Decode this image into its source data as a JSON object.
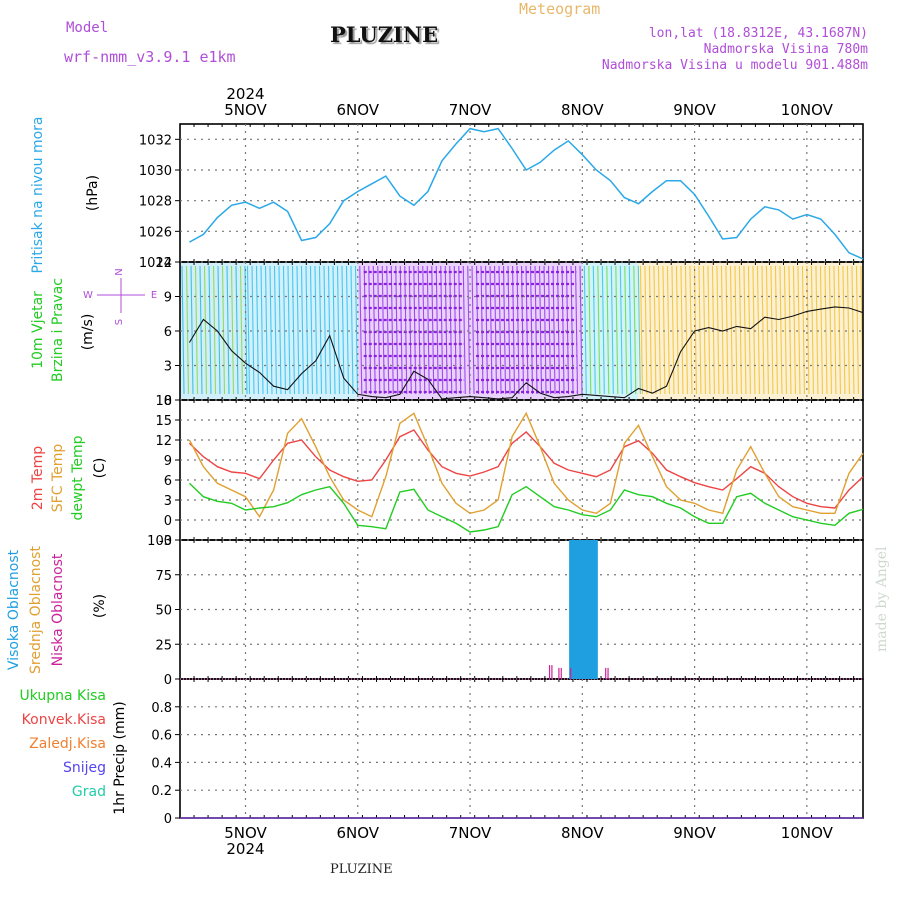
{
  "header": {
    "model_label": "Model",
    "model_name": "wrf-nmm_v3.9.1  e1km",
    "title": "PLUZINE",
    "product": "Meteogram",
    "coords": "lon,lat (18.8312E, 43.1687N)",
    "elevation": "Nadmorska Visina 780m",
    "model_elevation": "Nadmorska Visina u modelu 901.488m"
  },
  "footer": {
    "station": "PLUZINE"
  },
  "watermark": "made by Angel",
  "time_axis": {
    "year": "2024",
    "days": [
      "5NOV",
      "6NOV",
      "7NOV",
      "8NOV",
      "9NOV",
      "10NOV"
    ]
  },
  "colors": {
    "pressure": "#2aa8e8",
    "temp2m": "#ee4444",
    "sfc_temp": "#e0a030",
    "dewpoint": "#22cc22",
    "high_cloud": "#1f9fe0",
    "low_cloud": "#cc2299"
  },
  "chart_data": [
    {
      "type": "line",
      "panel": "pressure",
      "ylabel_lines": [
        "Pritisak na nivou mora",
        "(hPa)"
      ],
      "ylim": [
        1024,
        1033
      ],
      "yticks": [
        1024,
        1026,
        1028,
        1030,
        1032
      ],
      "x_hours": [
        0,
        3,
        6,
        9,
        12,
        15,
        18,
        21,
        24,
        27,
        30,
        33,
        36,
        39,
        42,
        45,
        48,
        51,
        54,
        57,
        60,
        63,
        66,
        69,
        72,
        75,
        78,
        81,
        84,
        87,
        90,
        93,
        96,
        99,
        102,
        105,
        108,
        111,
        114,
        117,
        120,
        123,
        126,
        129,
        132,
        135,
        138,
        141,
        144
      ],
      "series": [
        {
          "values": [
            1025.3,
            1025.8,
            1026.9,
            1027.7,
            1027.9,
            1027.5,
            1027.9,
            1027.3,
            1025.4,
            1025.6,
            1026.5,
            1028.0,
            1028.6,
            1029.1,
            1029.6,
            1028.3,
            1027.7,
            1028.6,
            1030.6,
            1031.7,
            1032.7,
            1032.5,
            1032.7,
            1031.4,
            1030.0,
            1030.5,
            1031.3,
            1031.9,
            1031.0,
            1030.0,
            1029.3,
            1028.2,
            1027.8,
            1028.6,
            1029.3,
            1029.3,
            1028.4,
            1027.0,
            1025.5,
            1025.6,
            1026.8,
            1027.6,
            1027.4,
            1026.8,
            1027.1,
            1026.8,
            1025.8,
            1024.6,
            1024.2
          ]
        }
      ]
    },
    {
      "type": "line",
      "panel": "wind",
      "ylabel_lines": [
        "10m Vjetar",
        "Brzina i Pravac",
        "(m/s)"
      ],
      "compass": [
        "N",
        "E",
        "S",
        "W"
      ],
      "ylim": [
        0,
        12
      ],
      "yticks": [
        0,
        3,
        6,
        9,
        12
      ],
      "x_hours": [
        0,
        3,
        6,
        9,
        12,
        15,
        18,
        21,
        24,
        27,
        30,
        33,
        36,
        39,
        42,
        45,
        48,
        51,
        54,
        57,
        60,
        63,
        66,
        69,
        72,
        75,
        78,
        81,
        84,
        87,
        90,
        93,
        96,
        99,
        102,
        105,
        108,
        111,
        114,
        117,
        120,
        123,
        126,
        129,
        132,
        135,
        138,
        141,
        144
      ],
      "series": [
        {
          "name": "wind_speed",
          "values": [
            5.0,
            7.0,
            6.0,
            4.3,
            3.2,
            2.4,
            1.2,
            0.9,
            2.3,
            3.4,
            5.6,
            1.9,
            0.5,
            0.3,
            0.2,
            0.5,
            2.5,
            1.8,
            0.1,
            0.2,
            0.3,
            0.2,
            0.1,
            0.2,
            1.5,
            0.6,
            0.2,
            0.3,
            0.5,
            0.4,
            0.3,
            0.2,
            1.0,
            0.6,
            1.2,
            4.2,
            6.0,
            6.3,
            6.0,
            6.4,
            6.2,
            7.2,
            7.0,
            7.3,
            7.7,
            7.9,
            8.1,
            8.0,
            7.6
          ]
        }
      ]
    },
    {
      "type": "line",
      "panel": "temperature",
      "ylabel_lines": [
        "2m Temp",
        "SFC Temp",
        "dewpt Temp",
        "(C)"
      ],
      "ylim": [
        -3,
        18
      ],
      "yticks": [
        -3,
        0,
        3,
        6,
        9,
        12,
        15,
        18
      ],
      "x_hours": [
        0,
        3,
        6,
        9,
        12,
        15,
        18,
        21,
        24,
        27,
        30,
        33,
        36,
        39,
        42,
        45,
        48,
        51,
        54,
        57,
        60,
        63,
        66,
        69,
        72,
        75,
        78,
        81,
        84,
        87,
        90,
        93,
        96,
        99,
        102,
        105,
        108,
        111,
        114,
        117,
        120,
        123,
        126,
        129,
        132,
        135,
        138,
        141,
        144
      ],
      "series": [
        {
          "name": "2m Temp",
          "values": [
            11.5,
            9.5,
            8.0,
            7.2,
            7.0,
            6.2,
            9.0,
            11.5,
            12.0,
            9.5,
            7.5,
            6.5,
            5.8,
            6.0,
            9.0,
            12.5,
            13.5,
            10.5,
            8.0,
            7.0,
            6.6,
            7.2,
            8.0,
            11.5,
            13.2,
            11.0,
            8.5,
            7.5,
            7.0,
            6.5,
            7.5,
            11.0,
            11.9,
            10.0,
            7.5,
            6.5,
            5.6,
            5.0,
            4.5,
            6.2,
            8.0,
            7.0,
            5.0,
            3.5,
            2.5,
            2.0,
            1.8,
            4.5,
            6.5
          ]
        },
        {
          "name": "SFC Temp",
          "values": [
            12.0,
            8.0,
            5.5,
            4.5,
            3.5,
            0.5,
            4.5,
            13.0,
            15.2,
            11.0,
            6.5,
            3.0,
            1.5,
            0.5,
            6.5,
            14.5,
            16.0,
            11.0,
            5.5,
            2.5,
            1.0,
            1.5,
            3.0,
            12.5,
            16.0,
            11.0,
            5.5,
            3.0,
            1.5,
            1.0,
            2.5,
            11.5,
            14.2,
            9.5,
            5.0,
            3.0,
            2.5,
            1.5,
            1.0,
            7.5,
            11.0,
            7.0,
            3.5,
            2.0,
            1.5,
            1.0,
            1.0,
            7.0,
            10.0
          ]
        },
        {
          "name": "dewpt Temp",
          "values": [
            5.5,
            3.5,
            2.8,
            2.5,
            1.5,
            1.8,
            2.0,
            2.6,
            3.8,
            4.5,
            5.0,
            2.5,
            -0.8,
            -1.0,
            -1.3,
            4.2,
            4.6,
            1.5,
            0.5,
            -0.5,
            -1.8,
            -1.5,
            -1.0,
            3.8,
            5.0,
            3.5,
            2.0,
            1.5,
            0.8,
            0.5,
            1.5,
            4.5,
            3.8,
            3.5,
            2.5,
            1.8,
            0.5,
            -0.5,
            -0.5,
            3.5,
            4.0,
            2.5,
            1.5,
            0.5,
            0.0,
            -0.5,
            -0.8,
            1.0,
            1.6
          ]
        }
      ]
    },
    {
      "type": "bar",
      "panel": "clouds",
      "ylabel_lines": [
        "Visoka Oblacnost",
        "Srednja Oblacnost",
        "Niska Oblacnost",
        "(%)"
      ],
      "ylim": [
        0,
        100
      ],
      "yticks": [
        0,
        25,
        50,
        75,
        100
      ],
      "series": [
        {
          "name": "Visoka Oblacnost",
          "x_hours": [
            81.5,
            82,
            82.5,
            83,
            83.5,
            84,
            84.5,
            85,
            85.5,
            86,
            86.5,
            87
          ],
          "values": [
            100,
            100,
            100,
            100,
            100,
            100,
            100,
            100,
            100,
            100,
            100,
            100
          ]
        },
        {
          "name": "Niska Oblacnost",
          "x_hours": [
            77,
            77.5,
            79,
            79.5,
            81.5,
            89,
            89.5
          ],
          "values": [
            10,
            10,
            8,
            8,
            8,
            8,
            8
          ]
        }
      ]
    },
    {
      "type": "bar",
      "panel": "precipitation",
      "ylabel_lines": [
        "1hr Precip (mm)"
      ],
      "legend": [
        "Ukupna Kisa",
        "Konvek.Kisa",
        "Zaledj.Kisa",
        "Snijeg",
        "Grad"
      ],
      "ylim": [
        0,
        1
      ],
      "yticks": [
        0,
        0.2,
        0.4,
        0.6,
        0.8
      ],
      "series": [
        {
          "name": "Ukupna Kisa",
          "values": []
        }
      ]
    }
  ]
}
